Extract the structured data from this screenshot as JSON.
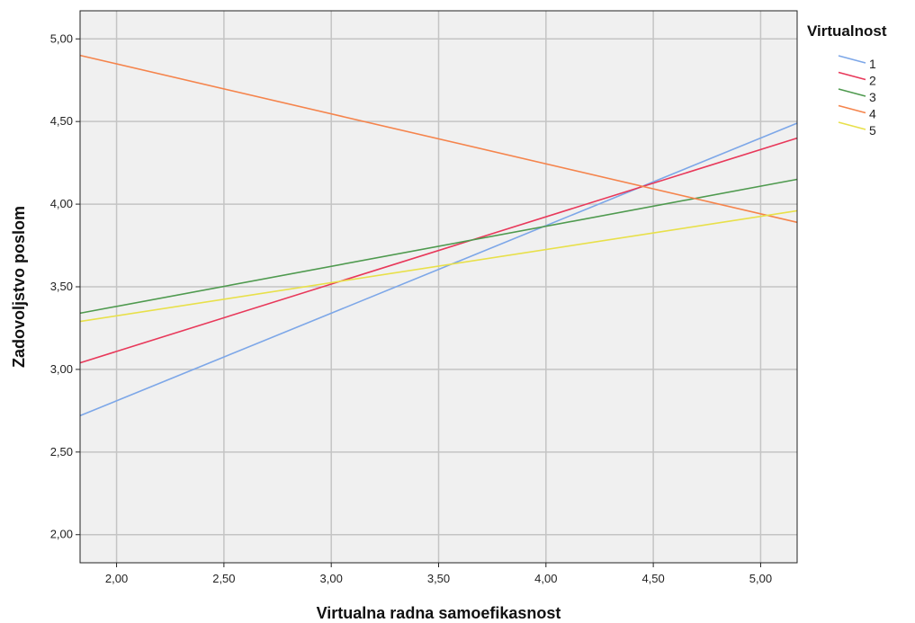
{
  "chart_data": {
    "type": "line",
    "xlabel": "Virtualna radna samoefikasnost",
    "ylabel": "Zadovoljstvo poslom",
    "xlim": [
      1.83,
      5.17
    ],
    "ylim": [
      1.83,
      5.17
    ],
    "x_ticks": [
      "2,00",
      "2,50",
      "3,00",
      "3,50",
      "4,00",
      "4,50",
      "5,00"
    ],
    "y_ticks": [
      "2,00",
      "2,50",
      "3,00",
      "3,50",
      "4,00",
      "4,50",
      "5,00"
    ],
    "grid": true,
    "background": "#f0f0f0",
    "legend": {
      "title": "Virtualnost",
      "placement": "right"
    },
    "series": [
      {
        "name": "1",
        "color": "#7da7e8",
        "x": [
          1.83,
          5.17
        ],
        "y": [
          2.72,
          4.49
        ]
      },
      {
        "name": "2",
        "color": "#e8385a",
        "x": [
          1.83,
          5.17
        ],
        "y": [
          3.04,
          4.4
        ]
      },
      {
        "name": "3",
        "color": "#4f9a4f",
        "x": [
          1.83,
          5.17
        ],
        "y": [
          3.34,
          4.15
        ]
      },
      {
        "name": "4",
        "color": "#f5844c",
        "x": [
          1.83,
          5.17
        ],
        "y": [
          4.9,
          3.89
        ]
      },
      {
        "name": "5",
        "color": "#e8e04a",
        "x": [
          1.83,
          5.17
        ],
        "y": [
          3.29,
          3.96
        ]
      }
    ]
  }
}
